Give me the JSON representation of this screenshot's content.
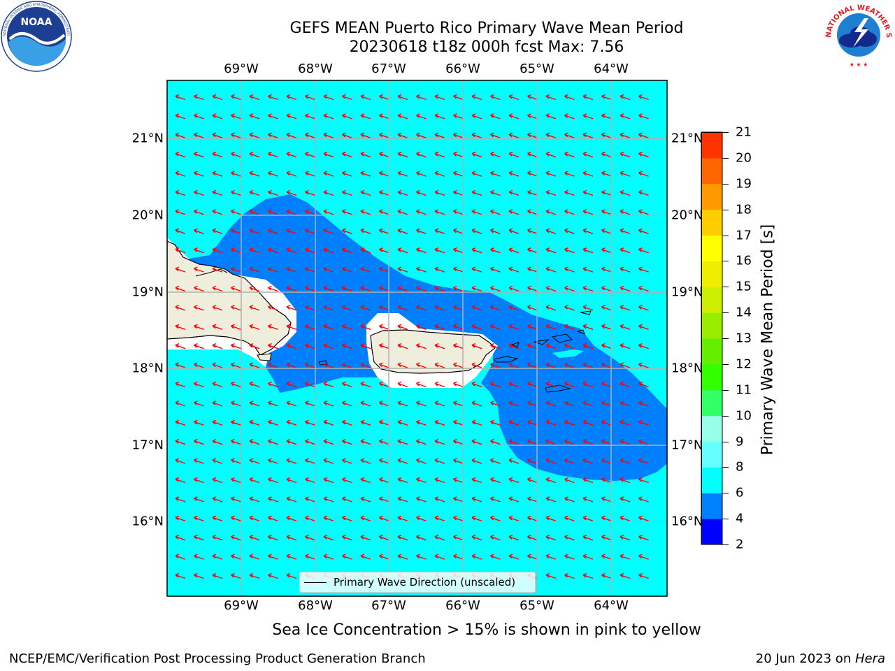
{
  "title": {
    "line1": "GEFS MEAN Puerto Rico Primary Wave Mean Period",
    "line2": "20230618 t18z 000h fcst   Max: 7.56"
  },
  "logos": {
    "noaa": {
      "icon": "noaa-logo-icon",
      "text": "NOAA",
      "ring_text": "NATIONAL OCEANIC AND ATMOSPHERIC ADMINISTRATION · U.S. DEPARTMENT OF COMMERCE"
    },
    "nws": {
      "icon": "nws-logo-icon",
      "ring_text": "NATIONAL WEATHER SERVICE"
    }
  },
  "map": {
    "lon_labels": [
      "69°W",
      "68°W",
      "67°W",
      "66°W",
      "65°W",
      "64°W"
    ],
    "lat_labels": [
      "21°N",
      "20°N",
      "19°N",
      "18°N",
      "17°N",
      "16°N"
    ],
    "lon_values": [
      -69,
      -68,
      -67,
      -66,
      -65,
      -64
    ],
    "lat_values": [
      21,
      20,
      19,
      18,
      17,
      16
    ],
    "lon_range": [
      -70,
      -63.25
    ],
    "lat_range": [
      15.0,
      21.75
    ],
    "grid": true,
    "colors": {
      "background_period": "#00ffff",
      "lower_period": "#0080ff",
      "land": "#efeedd",
      "arrows": "#ff0000",
      "grid": "#b0b0b0"
    },
    "wave_direction": "arrows pointing toward west-northwest (from ESE)"
  },
  "legend": {
    "label": "Primary Wave Direction (unscaled)"
  },
  "colorbar": {
    "label": "Primary Wave Mean Period [s]",
    "levels": [
      2,
      4,
      6,
      8,
      9,
      10,
      11,
      12,
      13,
      14,
      15,
      16,
      17,
      18,
      19,
      20,
      21
    ],
    "colors": [
      "#0000ff",
      "#0080ff",
      "#00ffff",
      "#66ffff",
      "#99ffe6",
      "#33ff66",
      "#33ff00",
      "#66ee00",
      "#99ee00",
      "#ccee00",
      "#eeee00",
      "#ffff00",
      "#ffcc00",
      "#ff9900",
      "#ff6600",
      "#ff3300"
    ],
    "tick_labels": [
      "2",
      "4",
      "6",
      "8",
      "9",
      "10",
      "11",
      "12",
      "13",
      "14",
      "15",
      "16",
      "17",
      "18",
      "19",
      "20",
      "21"
    ]
  },
  "note": "Sea Ice Concentration > 15% is shown in pink to yellow",
  "footer": {
    "left": "NCEP/EMC/Verification Post Processing Product Generation Branch",
    "right_prefix": "20 Jun 2023 on ",
    "right_host": "Hera"
  }
}
